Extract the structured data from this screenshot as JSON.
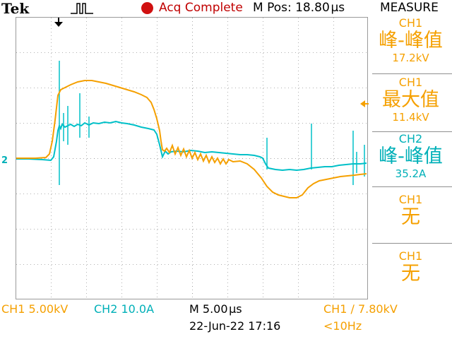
{
  "header": {
    "brand": "Tek",
    "acq_status": "Acq Complete",
    "m_pos": "M Pos: 18.80 µs",
    "measure_title": "MEASURE",
    "status_color": "#d01010"
  },
  "measurements": [
    {
      "channel": "CH1",
      "type": "峰-峰值",
      "value": "17.2kV",
      "color": "#f5a000"
    },
    {
      "channel": "CH1",
      "type": "最大值",
      "value": "11.4kV",
      "color": "#f5a000"
    },
    {
      "channel": "CH2",
      "type": "峰-峰值",
      "value": "35.2A",
      "color": "#00b0b8"
    },
    {
      "channel": "CH1",
      "type": "无",
      "value": "",
      "color": "#f5a000"
    },
    {
      "channel": "CH1",
      "type": "无",
      "value": "",
      "color": "#f5a000"
    }
  ],
  "footer": {
    "ch1_scale": "CH1  5.00kV",
    "ch2_scale": "CH2  10.0A",
    "time_scale": "M 5.00 µs",
    "trigger": "CH1 ∕ 7.80kV",
    "datetime": "22-Jun-22 17:16",
    "freq": "<10Hz"
  },
  "markers": {
    "ch2_marker": "2",
    "trigger_pos_icon": "down-arrow-icon",
    "trigger_level_icon": "left-arrow-icon",
    "trigger_waveform_icon": "pulse-icon"
  },
  "colors": {
    "ch1": "#f5a000",
    "ch2": "#00c0c8"
  }
}
